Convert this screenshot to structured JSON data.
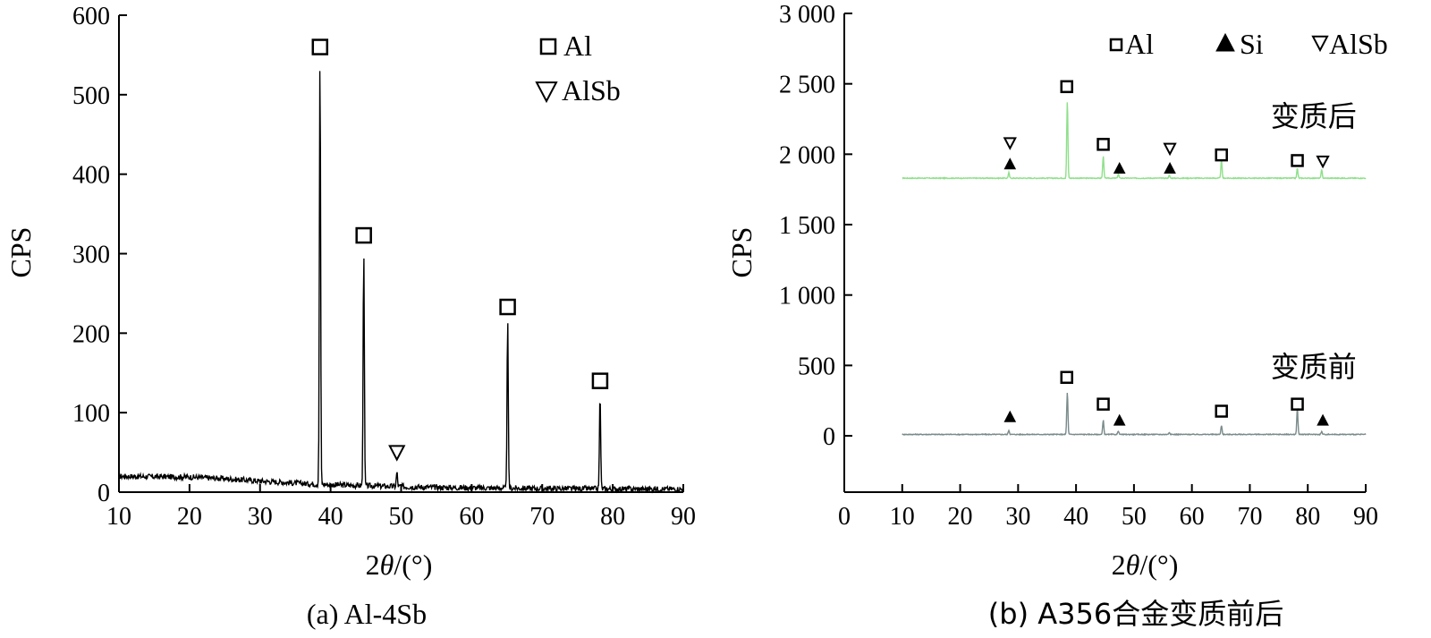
{
  "chart_data": [
    {
      "type": "line",
      "caption": "(a) Al-4Sb",
      "xlabel_prefix": "2",
      "xlabel_theta": "θ",
      "xlabel_suffix": "/(°)",
      "ylabel": "CPS",
      "xlim": [
        10,
        90
      ],
      "ylim": [
        0,
        600
      ],
      "xticks": [
        10,
        20,
        30,
        40,
        50,
        60,
        70,
        80,
        90
      ],
      "yticks": [
        0,
        100,
        200,
        300,
        400,
        500,
        600
      ],
      "grid": false,
      "legend_position": "top-right",
      "legend": [
        {
          "marker": "square",
          "label": "Al"
        },
        {
          "marker": "triangle-down",
          "label": "AlSb"
        }
      ],
      "series": [
        {
          "color": "#000000",
          "baseline": [
            [
              10,
              20
            ],
            [
              20,
              19
            ],
            [
              25,
              17
            ],
            [
              30,
              14
            ],
            [
              38,
              10
            ],
            [
              45,
              8
            ],
            [
              55,
              6
            ],
            [
              65,
              5
            ],
            [
              80,
              4
            ],
            [
              90,
              4
            ]
          ],
          "peaks": [
            {
              "x": 38.5,
              "y": 545
            },
            {
              "x": 44.7,
              "y": 305
            },
            {
              "x": 49.4,
              "y": 25
            },
            {
              "x": 65.1,
              "y": 215
            },
            {
              "x": 78.2,
              "y": 122
            }
          ]
        }
      ],
      "annotations": [
        {
          "marker": "square",
          "x": 38.5,
          "y": 560
        },
        {
          "marker": "square",
          "x": 44.7,
          "y": 323
        },
        {
          "marker": "triangle-down",
          "x": 49.4,
          "y": 50
        },
        {
          "marker": "square",
          "x": 65.1,
          "y": 233
        },
        {
          "marker": "square",
          "x": 78.2,
          "y": 140
        }
      ]
    },
    {
      "type": "line",
      "caption": "(b) A356合金变质前后",
      "xlabel_prefix": "2",
      "xlabel_theta": "θ",
      "xlabel_suffix": "/(°)",
      "ylabel": "CPS",
      "xlim": [
        0,
        90
      ],
      "ylim": [
        -400,
        3000
      ],
      "xticks": [
        0,
        10,
        20,
        30,
        40,
        50,
        60,
        70,
        80,
        90
      ],
      "yticks": [
        0,
        500,
        1000,
        1500,
        2000,
        2500,
        3000
      ],
      "ytick_labels": [
        "0",
        "500",
        "1 000",
        "1 500",
        "2 000",
        "2 500",
        "3 000"
      ],
      "grid": false,
      "legend_position": "top-right",
      "legend": [
        {
          "marker": "square",
          "label": "Al"
        },
        {
          "marker": "triangle-up",
          "label": "Si"
        },
        {
          "marker": "triangle-down",
          "label": "AlSb"
        }
      ],
      "series": [
        {
          "name": "变质后",
          "color": "#8ee08a",
          "x_range": [
            10,
            90
          ],
          "baseline": 1830,
          "peaks": [
            {
              "x": 28.4,
              "y": 1870
            },
            {
              "x": 38.5,
              "y": 2380
            },
            {
              "x": 44.7,
              "y": 1990
            },
            {
              "x": 47.3,
              "y": 1860
            },
            {
              "x": 56.1,
              "y": 1850
            },
            {
              "x": 65.1,
              "y": 1960
            },
            {
              "x": 78.2,
              "y": 1900
            },
            {
              "x": 82.4,
              "y": 1890
            }
          ]
        },
        {
          "name": "变质前",
          "color": "#7a8a8a",
          "x_range": [
            10,
            90
          ],
          "baseline": 10,
          "peaks": [
            {
              "x": 28.4,
              "y": 40
            },
            {
              "x": 38.5,
              "y": 310
            },
            {
              "x": 44.7,
              "y": 110
            },
            {
              "x": 47.3,
              "y": 35
            },
            {
              "x": 56.1,
              "y": 25
            },
            {
              "x": 65.1,
              "y": 75
            },
            {
              "x": 78.2,
              "y": 200
            },
            {
              "x": 82.4,
              "y": 30
            }
          ]
        }
      ],
      "annotations": [
        {
          "marker": "triangle-down",
          "x": 28.6,
          "y": 2080
        },
        {
          "marker": "triangle-up",
          "x": 28.6,
          "y": 1930
        },
        {
          "marker": "square",
          "x": 38.4,
          "y": 2480
        },
        {
          "marker": "square",
          "x": 44.7,
          "y": 2070
        },
        {
          "marker": "triangle-up",
          "x": 47.5,
          "y": 1900
        },
        {
          "marker": "triangle-down",
          "x": 56.2,
          "y": 2040
        },
        {
          "marker": "triangle-up",
          "x": 56.2,
          "y": 1900
        },
        {
          "marker": "square",
          "x": 65.1,
          "y": 1995
        },
        {
          "marker": "square",
          "x": 78.2,
          "y": 1955
        },
        {
          "marker": "triangle-down",
          "x": 82.6,
          "y": 1950
        },
        {
          "marker": "triangle-up",
          "x": 28.6,
          "y": 135
        },
        {
          "marker": "square",
          "x": 38.4,
          "y": 415
        },
        {
          "marker": "square",
          "x": 44.7,
          "y": 225
        },
        {
          "marker": "triangle-up",
          "x": 47.5,
          "y": 110
        },
        {
          "marker": "square",
          "x": 65.1,
          "y": 175
        },
        {
          "marker": "square",
          "x": 78.2,
          "y": 225
        },
        {
          "marker": "triangle-up",
          "x": 82.6,
          "y": 110
        }
      ],
      "series_labels": [
        {
          "text": "变质后",
          "x": 81,
          "y": 2200
        },
        {
          "text": "变质前",
          "x": 81,
          "y": 420
        }
      ]
    }
  ]
}
